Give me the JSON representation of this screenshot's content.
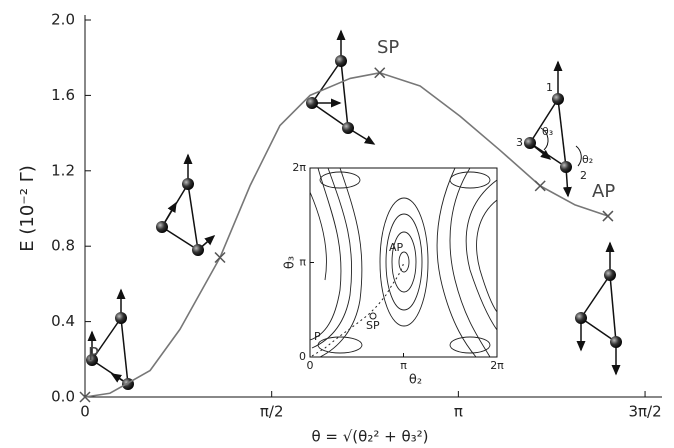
{
  "chart_data": [
    {
      "type": "line",
      "ylabel": "E (10⁻² Γ)",
      "xlabel": "θ = √(θ₂² + θ₃²)",
      "series": [
        {
          "color": "#777777",
          "x": [
            0,
            0.21,
            0.547,
            0.8,
            1.136,
            1.388,
            1.64,
            1.893,
            2.23,
            2.48,
            2.82,
            3.155,
            3.49,
            3.83,
            4.12,
            4.4
          ],
          "values": [
            0,
            0.02,
            0.14,
            0.36,
            0.74,
            1.12,
            1.44,
            1.6,
            1.69,
            1.72,
            1.65,
            1.49,
            1.31,
            1.12,
            1.02,
            0.96
          ]
        },
        {
          "type": "markers",
          "color": "#555555",
          "x": [
            0,
            1.136,
            2.48,
            3.83,
            4.4
          ],
          "values": [
            0,
            0.74,
            1.72,
            1.12,
            0.96
          ]
        }
      ],
      "annotations": [
        "P",
        "SP",
        "AP"
      ],
      "xlim": [
        0,
        4.712
      ],
      "ylim": [
        0,
        2.0
      ],
      "xticks": [
        0,
        {
          "value": 1.5708,
          "label": "π/2"
        },
        {
          "value": 3.1416,
          "label": "π"
        },
        {
          "value": 4.7124,
          "label": "3π/2"
        }
      ],
      "yticks": [
        {
          "value": 0,
          "label": "0.0"
        },
        0.4,
        0.8,
        1.2,
        1.6,
        {
          "value": 2.0,
          "label": "2.0"
        }
      ],
      "diagram_labels": [
        "1",
        "2",
        "3",
        "θ₃",
        "θ₂"
      ]
    },
    {
      "type": "contour",
      "xlabel": "θ₂",
      "ylabel": "θ₃",
      "annotations": [
        "AP",
        "SP",
        "P"
      ],
      "xlim": [
        0,
        6.2832
      ],
      "ylim": [
        0,
        6.2832
      ],
      "xticks": [
        0,
        {
          "value": 3.1416,
          "label": "π"
        },
        {
          "value": 6.2832,
          "label": "2π"
        }
      ],
      "yticks": [
        0,
        {
          "value": 3.1416,
          "label": "π"
        },
        {
          "value": 6.2832,
          "label": "2π"
        }
      ]
    }
  ]
}
